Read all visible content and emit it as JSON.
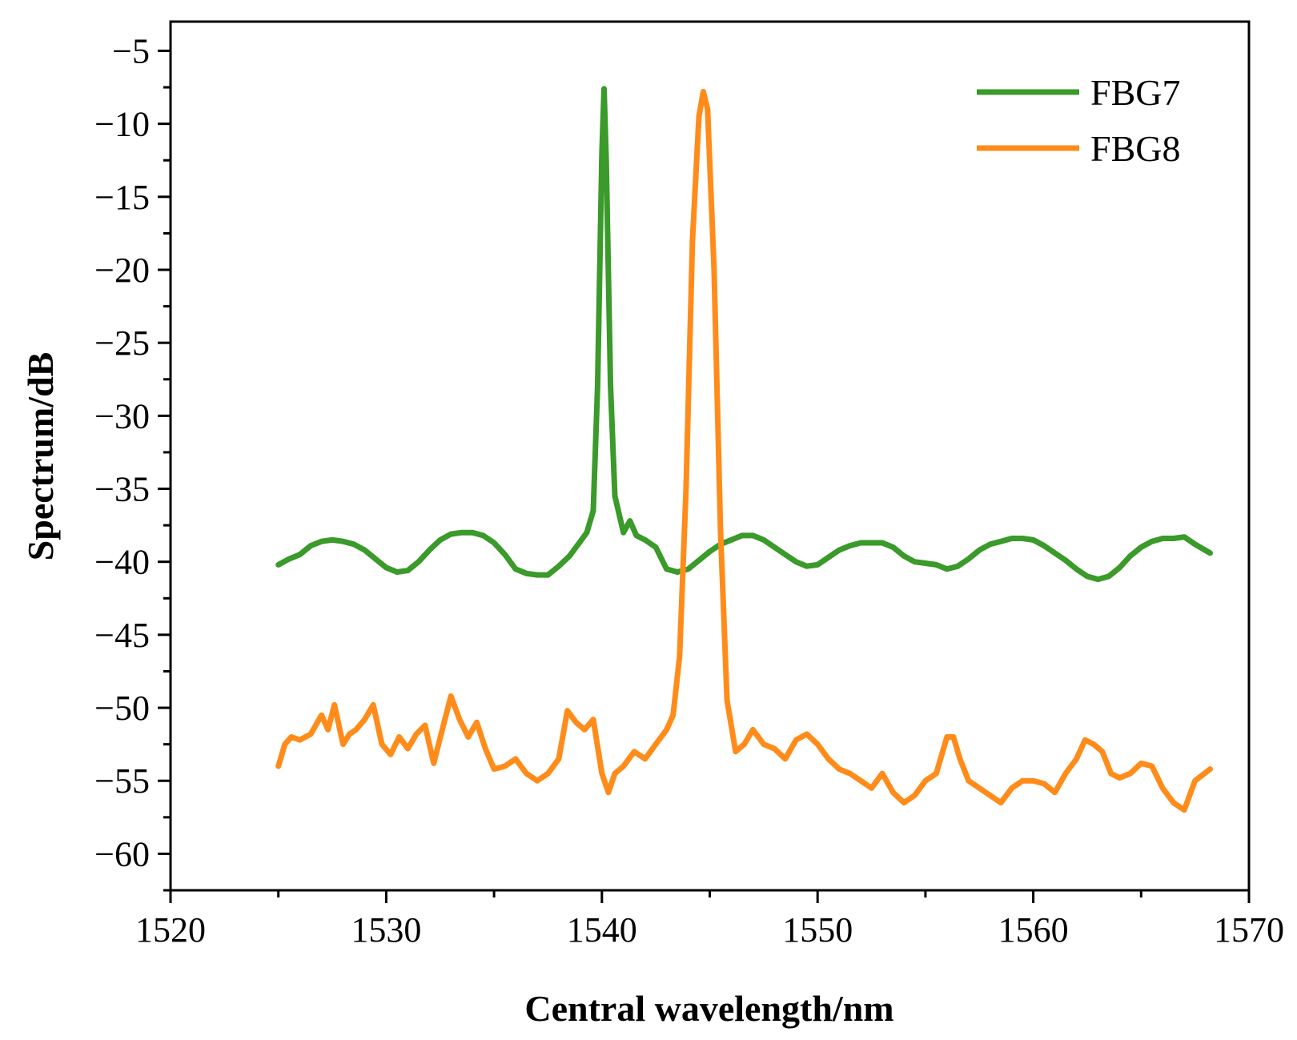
{
  "chart_data": {
    "type": "line",
    "title": "",
    "xlabel": "Central wavelength/nm",
    "ylabel": "Spectrum/dB",
    "xlim": [
      1520,
      1570
    ],
    "ylim": [
      -62.5,
      -3
    ],
    "xticks": [
      1520,
      1530,
      1540,
      1550,
      1560,
      1570
    ],
    "yticks": [
      -5,
      -10,
      -15,
      -20,
      -25,
      -30,
      -35,
      -40,
      -45,
      -50,
      -55,
      -60
    ],
    "xtick_labels": [
      "1520",
      "1530",
      "1540",
      "1550",
      "1560",
      "1570"
    ],
    "ytick_labels": [
      "−5",
      "−10",
      "−15",
      "−20",
      "−25",
      "−30",
      "−35",
      "−40",
      "−45",
      "−50",
      "−55",
      "−60"
    ],
    "legend_position": "top-right",
    "grid": false,
    "series": [
      {
        "name": "FBG7",
        "color": "#3a9a2a",
        "x": [
          1525,
          1525.5,
          1526,
          1526.5,
          1527,
          1527.5,
          1528,
          1528.5,
          1529,
          1529.5,
          1530,
          1530.5,
          1531,
          1531.5,
          1532,
          1532.5,
          1533,
          1533.5,
          1534,
          1534.5,
          1535,
          1535.5,
          1536,
          1536.5,
          1537,
          1537.5,
          1538,
          1538.5,
          1539,
          1539.3,
          1539.6,
          1539.8,
          1540,
          1540.1,
          1540.2,
          1540.4,
          1540.6,
          1541,
          1541.3,
          1541.6,
          1542,
          1542.5,
          1543,
          1543.5,
          1544,
          1544.5,
          1545,
          1545.5,
          1546,
          1546.5,
          1547,
          1547.5,
          1548,
          1548.5,
          1549,
          1549.5,
          1550,
          1550.5,
          1551,
          1551.5,
          1552,
          1552.5,
          1553,
          1553.5,
          1554,
          1554.5,
          1555,
          1555.5,
          1556,
          1556.5,
          1557,
          1557.5,
          1558,
          1558.5,
          1559,
          1559.5,
          1560,
          1560.5,
          1561,
          1561.5,
          1562,
          1562.5,
          1563,
          1563.5,
          1564,
          1564.5,
          1565,
          1565.5,
          1566,
          1566.5,
          1567,
          1567.5,
          1568.2
        ],
        "values": [
          -40.2,
          -39.8,
          -39.5,
          -38.9,
          -38.6,
          -38.5,
          -38.6,
          -38.8,
          -39.2,
          -39.8,
          -40.4,
          -40.7,
          -40.6,
          -40.0,
          -39.2,
          -38.5,
          -38.1,
          -38.0,
          -38.0,
          -38.2,
          -38.7,
          -39.5,
          -40.5,
          -40.8,
          -40.9,
          -40.9,
          -40.3,
          -39.6,
          -38.6,
          -38.0,
          -36.5,
          -28.0,
          -12.0,
          -7.6,
          -12.5,
          -28.0,
          -35.5,
          -38.0,
          -37.2,
          -38.2,
          -38.5,
          -39.0,
          -40.5,
          -40.7,
          -40.5,
          -39.9,
          -39.3,
          -38.8,
          -38.5,
          -38.2,
          -38.2,
          -38.5,
          -39.0,
          -39.5,
          -40.0,
          -40.3,
          -40.2,
          -39.7,
          -39.2,
          -38.9,
          -38.7,
          -38.7,
          -38.7,
          -39.0,
          -39.6,
          -40.0,
          -40.1,
          -40.2,
          -40.5,
          -40.3,
          -39.8,
          -39.2,
          -38.8,
          -38.6,
          -38.4,
          -38.4,
          -38.5,
          -38.9,
          -39.4,
          -39.9,
          -40.5,
          -41.0,
          -41.2,
          -41.0,
          -40.4,
          -39.6,
          -39.0,
          -38.6,
          -38.4,
          -38.4,
          -38.3,
          -38.8,
          -39.4
        ]
      },
      {
        "name": "FBG8",
        "color": "#ff8c1a",
        "x": [
          1525,
          1525.3,
          1525.6,
          1526,
          1526.5,
          1527,
          1527.3,
          1527.6,
          1528,
          1528.3,
          1528.6,
          1529,
          1529.4,
          1529.8,
          1530.2,
          1530.6,
          1531,
          1531.4,
          1531.8,
          1532.2,
          1532.6,
          1533,
          1533.4,
          1533.8,
          1534.2,
          1534.6,
          1535,
          1535.5,
          1536,
          1536.5,
          1537,
          1537.5,
          1538,
          1538.4,
          1538.8,
          1539.2,
          1539.6,
          1540,
          1540.3,
          1540.6,
          1541,
          1541.5,
          1542,
          1542.5,
          1543,
          1543.3,
          1543.6,
          1543.9,
          1544.2,
          1544.5,
          1544.7,
          1544.9,
          1545.2,
          1545.5,
          1545.8,
          1546.2,
          1546.6,
          1547,
          1547.5,
          1548,
          1548.5,
          1549,
          1549.5,
          1550,
          1550.5,
          1551,
          1551.5,
          1552,
          1552.5,
          1553,
          1553.5,
          1554,
          1554.5,
          1555,
          1555.5,
          1556,
          1556.3,
          1556.6,
          1557,
          1557.5,
          1558,
          1558.5,
          1559,
          1559.5,
          1560,
          1560.5,
          1561,
          1561.5,
          1562,
          1562.4,
          1562.8,
          1563.2,
          1563.6,
          1564,
          1564.5,
          1565,
          1565.5,
          1566,
          1566.5,
          1567,
          1567.5,
          1568.2
        ],
        "values": [
          -54.0,
          -52.5,
          -52.0,
          -52.2,
          -51.8,
          -50.5,
          -51.5,
          -49.8,
          -52.5,
          -51.8,
          -51.5,
          -50.8,
          -49.8,
          -52.5,
          -53.2,
          -52.0,
          -52.8,
          -51.8,
          -51.2,
          -53.8,
          -51.5,
          -49.2,
          -50.8,
          -52.0,
          -51.0,
          -52.8,
          -54.2,
          -54.0,
          -53.5,
          -54.5,
          -55.0,
          -54.5,
          -53.5,
          -50.2,
          -51.0,
          -51.5,
          -50.8,
          -54.5,
          -55.8,
          -54.5,
          -54.0,
          -53.0,
          -53.5,
          -52.5,
          -51.5,
          -50.5,
          -46.5,
          -35.0,
          -18.0,
          -9.5,
          -7.8,
          -9.0,
          -20.0,
          -38.0,
          -49.5,
          -53.0,
          -52.5,
          -51.5,
          -52.5,
          -52.8,
          -53.5,
          -52.2,
          -51.8,
          -52.5,
          -53.5,
          -54.2,
          -54.5,
          -55.0,
          -55.5,
          -54.5,
          -55.8,
          -56.5,
          -56.0,
          -55.0,
          -54.5,
          -52.0,
          -52.0,
          -53.5,
          -55.0,
          -55.5,
          -56.0,
          -56.5,
          -55.5,
          -55.0,
          -55.0,
          -55.2,
          -55.8,
          -54.5,
          -53.5,
          -52.2,
          -52.5,
          -53.0,
          -54.5,
          -54.8,
          -54.5,
          -53.8,
          -54.0,
          -55.5,
          -56.5,
          -57.0,
          -55.0,
          -54.2
        ]
      }
    ]
  }
}
